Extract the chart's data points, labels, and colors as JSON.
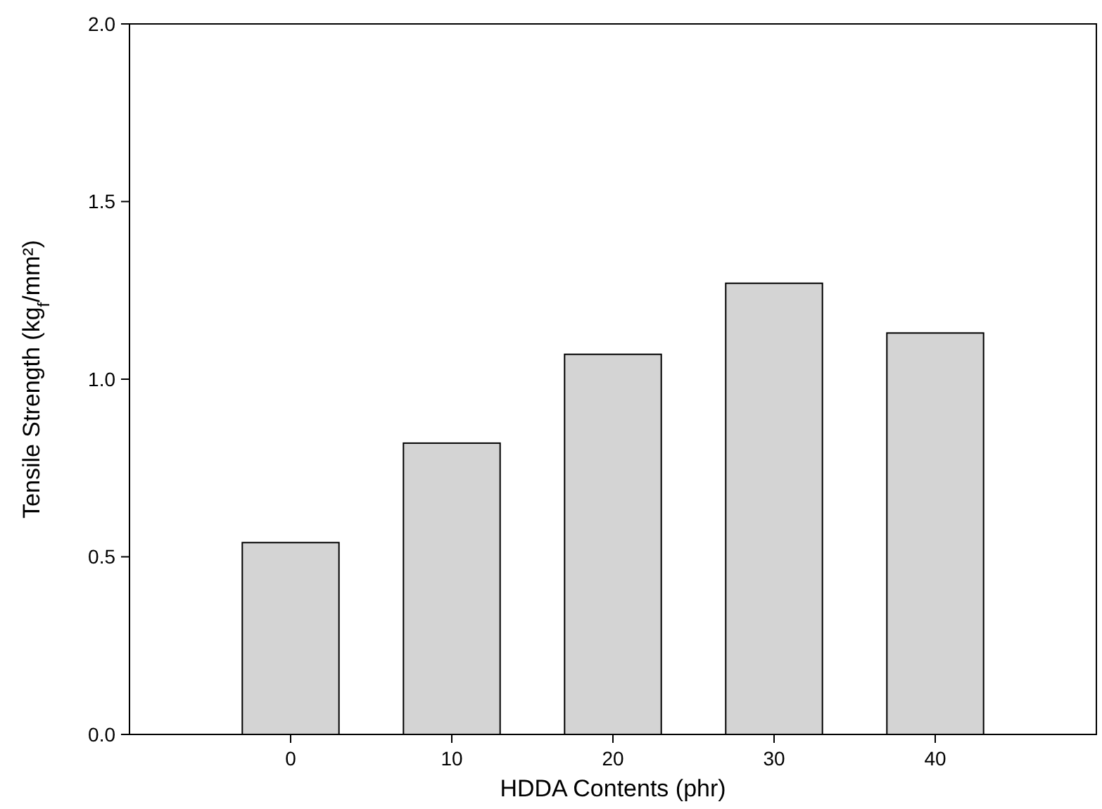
{
  "chart_data": {
    "type": "bar",
    "xlabel": "HDDA Contents (phr)",
    "ylabel": "Tensile Strength (kg$_{f}$/mm²)",
    "categories": [
      "0",
      "10",
      "20",
      "30",
      "40"
    ],
    "values": [
      0.54,
      0.82,
      1.07,
      1.27,
      1.13
    ],
    "color": "#d4d4d4",
    "ylim": [
      0,
      2
    ],
    "yticks": [
      {
        "value": 0,
        "label": "0.0"
      },
      {
        "value": 0.5,
        "label": "0.5"
      },
      {
        "value": 1,
        "label": "1.0"
      },
      {
        "value": 1.5,
        "label": "1.5"
      },
      {
        "value": 2,
        "label": "2.0"
      }
    ],
    "grid": false
  }
}
